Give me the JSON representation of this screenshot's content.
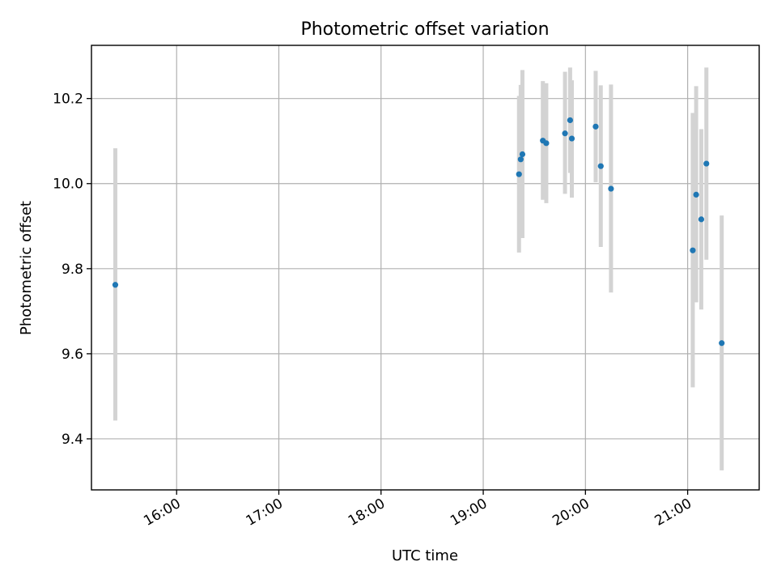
{
  "chart_data": {
    "type": "scatter",
    "title": "Photometric offset variation",
    "xlabel": "UTC time",
    "ylabel": "Photometric offset",
    "x_tick_labels": [
      "16:00",
      "17:00",
      "18:00",
      "19:00",
      "20:00",
      "21:00"
    ],
    "x_ticks": [
      "16:00",
      "17:00",
      "18:00",
      "19:00",
      "20:00",
      "21:00"
    ],
    "xlim": [
      "15:10",
      "21:42"
    ],
    "y_ticks": [
      9.4,
      9.6,
      9.8,
      10.0,
      10.2
    ],
    "y_tick_labels": [
      "9.4",
      "9.6",
      "9.8",
      "10.0",
      "10.2"
    ],
    "ylim": [
      9.28,
      10.325
    ],
    "grid": true,
    "marker_color": "#1f77b4",
    "errorbar_color": "#d3d3d3",
    "points": [
      {
        "t": "15:24",
        "y": 9.762,
        "lo": 9.443,
        "hi": 10.083
      },
      {
        "t": "19:21",
        "y": 10.022,
        "lo": 9.838,
        "hi": 10.206
      },
      {
        "t": "19:22",
        "y": 10.057,
        "lo": 9.882,
        "hi": 10.232
      },
      {
        "t": "19:23",
        "y": 10.069,
        "lo": 9.872,
        "hi": 10.267
      },
      {
        "t": "19:35",
        "y": 10.101,
        "lo": 9.962,
        "hi": 10.241
      },
      {
        "t": "19:37",
        "y": 10.095,
        "lo": 9.954,
        "hi": 10.236
      },
      {
        "t": "19:48",
        "y": 10.118,
        "lo": 9.976,
        "hi": 10.263
      },
      {
        "t": "19:51",
        "y": 10.149,
        "lo": 10.025,
        "hi": 10.273
      },
      {
        "t": "19:52",
        "y": 10.106,
        "lo": 9.967,
        "hi": 10.243
      },
      {
        "t": "20:06",
        "y": 10.134,
        "lo": 10.003,
        "hi": 10.265
      },
      {
        "t": "20:09",
        "y": 10.041,
        "lo": 9.851,
        "hi": 10.231
      },
      {
        "t": "20:15",
        "y": 9.988,
        "lo": 9.744,
        "hi": 10.233
      },
      {
        "t": "21:03",
        "y": 9.843,
        "lo": 9.521,
        "hi": 10.166
      },
      {
        "t": "21:05",
        "y": 9.974,
        "lo": 9.721,
        "hi": 10.229
      },
      {
        "t": "21:08",
        "y": 9.916,
        "lo": 9.704,
        "hi": 10.128
      },
      {
        "t": "21:11",
        "y": 10.047,
        "lo": 9.821,
        "hi": 10.273
      },
      {
        "t": "21:20",
        "y": 9.625,
        "lo": 9.326,
        "hi": 9.925
      }
    ]
  }
}
